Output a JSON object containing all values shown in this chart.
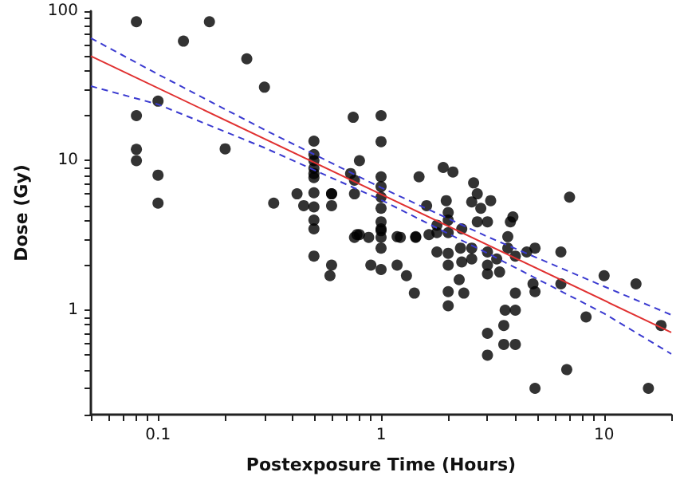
{
  "chart_data": {
    "type": "scatter",
    "xlabel": "Postexposure Time (Hours)",
    "ylabel": "Dose (Gy)",
    "log": "xy",
    "grid": false,
    "marker": "circle",
    "xlim": [
      0.05,
      20
    ],
    "ylim": [
      0.2,
      100
    ],
    "xticks": [
      {
        "value": 0.05,
        "label": null
      },
      {
        "value": 0.06,
        "label": null
      },
      {
        "value": 0.07,
        "label": null
      },
      {
        "value": 0.08,
        "label": null
      },
      {
        "value": 0.09,
        "label": null
      },
      0.1,
      {
        "value": 0.2,
        "label": null
      },
      {
        "value": 0.3,
        "label": null
      },
      {
        "value": 0.4,
        "label": null
      },
      {
        "value": 0.5,
        "label": null
      },
      {
        "value": 0.6,
        "label": null
      },
      {
        "value": 0.7,
        "label": null
      },
      {
        "value": 0.8,
        "label": null
      },
      {
        "value": 0.9,
        "label": null
      },
      1,
      {
        "value": 2,
        "label": null
      },
      {
        "value": 3,
        "label": null
      },
      {
        "value": 4,
        "label": null
      },
      {
        "value": 5,
        "label": null
      },
      {
        "value": 6,
        "label": null
      },
      {
        "value": 7,
        "label": null
      },
      {
        "value": 8,
        "label": null
      },
      {
        "value": 9,
        "label": null
      },
      10,
      {
        "value": 20,
        "label": null
      }
    ],
    "yticks": [
      {
        "value": 0.2,
        "label": null
      },
      {
        "value": 0.3,
        "label": null
      },
      {
        "value": 0.4,
        "label": null
      },
      {
        "value": 0.5,
        "label": null
      },
      {
        "value": 0.6,
        "label": null
      },
      {
        "value": 0.7,
        "label": null
      },
      {
        "value": 0.8,
        "label": null
      },
      {
        "value": 0.9,
        "label": null
      },
      1,
      {
        "value": 2,
        "label": null
      },
      {
        "value": 3,
        "label": null
      },
      {
        "value": 4,
        "label": null
      },
      {
        "value": 5,
        "label": null
      },
      {
        "value": 6,
        "label": null
      },
      {
        "value": 7,
        "label": null
      },
      {
        "value": 8,
        "label": null
      },
      {
        "value": 9,
        "label": null
      },
      10,
      {
        "value": 20,
        "label": null
      },
      {
        "value": 30,
        "label": null
      },
      {
        "value": 40,
        "label": null
      },
      {
        "value": 50,
        "label": null
      },
      {
        "value": 60,
        "label": null
      },
      {
        "value": 70,
        "label": null
      },
      {
        "value": 80,
        "label": null
      },
      {
        "value": 90,
        "label": null
      },
      100
    ],
    "series": [
      {
        "color": "#000000",
        "x": [
          0.08,
          0.08,
          0.08,
          0.08,
          0.1,
          0.1,
          0.1,
          0.13,
          0.17,
          0.2,
          0.25,
          0.3,
          0.33,
          0.42,
          0.45,
          0.5,
          0.5,
          0.5,
          0.5,
          0.5,
          0.5,
          0.5,
          0.5,
          0.5,
          0.5,
          0.5,
          0.6,
          0.6,
          0.6,
          0.6,
          0.59,
          0.75,
          1,
          1,
          0.8,
          0.73,
          0.76,
          0.76,
          1,
          1,
          1,
          1,
          1,
          1,
          1.48,
          1.6,
          1.9,
          2.1,
          2.6,
          2.7,
          2.55,
          2.8,
          3.1,
          1.96,
          2,
          2,
          1.78,
          2.3,
          2.7,
          3,
          3.8,
          3.9,
          7,
          0.78,
          0.8,
          1.18,
          1.43,
          1.78,
          2,
          3.7,
          0.76,
          0.88,
          1,
          1,
          1,
          1.22,
          1.43,
          0.9,
          1,
          1.18,
          1.3,
          1.41,
          1.64,
          1.78,
          2,
          2,
          2.3,
          2.27,
          2.55,
          2.55,
          2.24,
          2,
          2,
          2.35,
          3,
          3,
          3,
          3.4,
          3.3,
          3.7,
          4,
          4,
          4,
          3.6,
          3.55,
          3,
          3,
          3.55,
          4,
          4.5,
          4.9,
          4.8,
          4.9,
          4.9,
          6.4,
          6.4,
          6.8,
          8.3,
          10,
          13.9,
          15.8,
          18
        ],
        "values": [
          85,
          20,
          11.9,
          10,
          25,
          8,
          5.2,
          63,
          85,
          12,
          48,
          31,
          5.2,
          6,
          5,
          13.5,
          11,
          10,
          8.2,
          6.1,
          4.9,
          4,
          3.5,
          2.3,
          8.9,
          7.7,
          6,
          5,
          2,
          6,
          1.7,
          19.5,
          20,
          13.4,
          10,
          8.2,
          7.4,
          6,
          7.8,
          6.7,
          5.7,
          4.8,
          3.9,
          3.4,
          7.8,
          5,
          9,
          8.4,
          7.1,
          6,
          5.3,
          4.8,
          5.4,
          5.4,
          4.5,
          4,
          3.7,
          3.5,
          3.9,
          3.9,
          3.9,
          4.2,
          5.7,
          3.2,
          3.2,
          3.1,
          3.1,
          3.3,
          3.3,
          3.1,
          3.07,
          3.07,
          3.5,
          3.07,
          2.6,
          3.07,
          3.07,
          2,
          1.87,
          2,
          1.7,
          1.3,
          3.2,
          2.45,
          2.4,
          2,
          2.1,
          2.6,
          2.6,
          2.2,
          1.6,
          1.33,
          1.07,
          1.3,
          2.45,
          2,
          1.75,
          1.8,
          2.2,
          2.6,
          2.3,
          1.3,
          1,
          1,
          0.79,
          0.7,
          0.5,
          0.59,
          0.59,
          2.45,
          2.6,
          1.5,
          1.33,
          0.3,
          2.45,
          1.5,
          0.4,
          0.9,
          1.7,
          1.5,
          0.3,
          0.79
        ]
      },
      {
        "type": "line",
        "color": "#e03030",
        "line_style": "solid",
        "marker": "none",
        "x": [
          0.05,
          20
        ],
        "values": [
          50,
          0.71
        ]
      },
      {
        "type": "line",
        "color": "#3a3ad0",
        "line_style": "dashed",
        "marker": "none",
        "x": [
          0.05,
          0.1,
          0.3,
          1,
          3,
          10,
          20
        ],
        "values": [
          66,
          37.8,
          16.1,
          6.6,
          3.1,
          1.44,
          0.93
        ]
      },
      {
        "type": "line",
        "color": "#3a3ad0",
        "line_style": "dashed",
        "marker": "none",
        "x": [
          0.05,
          0.1,
          0.3,
          1,
          3,
          10,
          20
        ],
        "values": [
          31.5,
          23.8,
          12.2,
          5.46,
          2.4,
          0.95,
          0.51
        ]
      }
    ]
  }
}
